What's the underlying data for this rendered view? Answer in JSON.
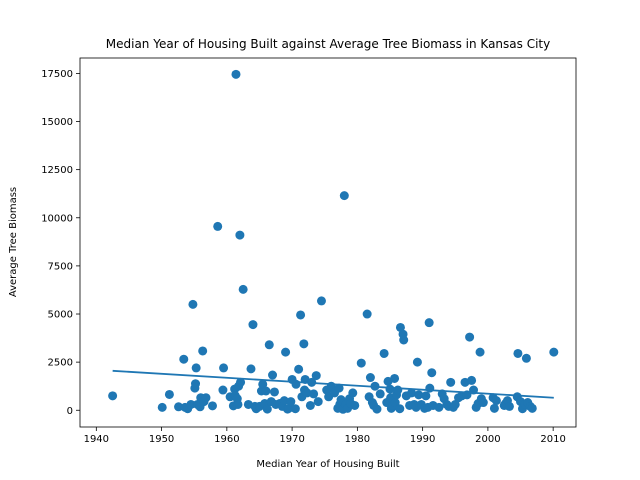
{
  "chart_data": {
    "type": "scatter",
    "title": "Median Year of Housing Built against Average Tree Biomass in Kansas City",
    "xlabel": "Median Year of Housing Built",
    "ylabel": "Average Tree Biomass",
    "xlim": [
      1937.5,
      2013.5
    ],
    "ylim": [
      -870,
      18300
    ],
    "xticks": [
      1940,
      1950,
      1960,
      1970,
      1980,
      1990,
      2000,
      2010
    ],
    "yticks": [
      0,
      2500,
      5000,
      7500,
      10000,
      12500,
      15000,
      17500
    ],
    "xtick_labels": [
      "1940",
      "1950",
      "1960",
      "1970",
      "1980",
      "1990",
      "2000",
      "2010"
    ],
    "ytick_labels": [
      "0",
      "2500",
      "5000",
      "7500",
      "10000",
      "12500",
      "15000",
      "17500"
    ],
    "grid": false,
    "colors": {
      "points": "#1f77b4",
      "trend": "#1f77b4",
      "axes": "#000000"
    },
    "trendline": {
      "x": [
        1942.5,
        2010.1
      ],
      "y": [
        2050,
        650
      ]
    },
    "points": [
      [
        1942.5,
        750
      ],
      [
        1950.1,
        150
      ],
      [
        1951.2,
        820
      ],
      [
        1952.6,
        180
      ],
      [
        1953.4,
        2650
      ],
      [
        1953.6,
        150
      ],
      [
        1954.0,
        80
      ],
      [
        1954.5,
        300
      ],
      [
        1954.8,
        5500
      ],
      [
        1955.1,
        1150
      ],
      [
        1955.2,
        1380
      ],
      [
        1955.3,
        2200
      ],
      [
        1955.5,
        300
      ],
      [
        1955.9,
        180
      ],
      [
        1956.0,
        650
      ],
      [
        1956.3,
        3080
      ],
      [
        1956.5,
        450
      ],
      [
        1956.8,
        650
      ],
      [
        1957.8,
        230
      ],
      [
        1958.6,
        9550
      ],
      [
        1959.4,
        1050
      ],
      [
        1959.5,
        2200
      ],
      [
        1960.5,
        700
      ],
      [
        1961.0,
        230
      ],
      [
        1961.2,
        1100
      ],
      [
        1961.3,
        750
      ],
      [
        1961.4,
        17450
      ],
      [
        1961.6,
        600
      ],
      [
        1961.7,
        300
      ],
      [
        1961.8,
        1250
      ],
      [
        1962.0,
        9100
      ],
      [
        1962.1,
        1450
      ],
      [
        1962.5,
        6280
      ],
      [
        1963.3,
        300
      ],
      [
        1963.7,
        2150
      ],
      [
        1964.0,
        4450
      ],
      [
        1964.3,
        200
      ],
      [
        1964.5,
        80
      ],
      [
        1965.0,
        200
      ],
      [
        1965.3,
        1000
      ],
      [
        1965.5,
        1350
      ],
      [
        1965.8,
        350
      ],
      [
        1966.0,
        1000
      ],
      [
        1966.2,
        60
      ],
      [
        1966.5,
        3400
      ],
      [
        1966.8,
        450
      ],
      [
        1967.0,
        1830
      ],
      [
        1967.3,
        950
      ],
      [
        1967.5,
        300
      ],
      [
        1968.1,
        350
      ],
      [
        1968.5,
        200
      ],
      [
        1968.8,
        500
      ],
      [
        1969.0,
        3020
      ],
      [
        1969.3,
        60
      ],
      [
        1969.5,
        100
      ],
      [
        1969.8,
        450
      ],
      [
        1970.0,
        1600
      ],
      [
        1970.5,
        80
      ],
      [
        1970.6,
        1350
      ],
      [
        1971.0,
        2130
      ],
      [
        1971.3,
        4950
      ],
      [
        1971.5,
        700
      ],
      [
        1971.8,
        3450
      ],
      [
        1971.9,
        1050
      ],
      [
        1972.0,
        1600
      ],
      [
        1972.3,
        900
      ],
      [
        1972.8,
        250
      ],
      [
        1973.0,
        1450
      ],
      [
        1973.3,
        850
      ],
      [
        1973.7,
        1800
      ],
      [
        1974.0,
        450
      ],
      [
        1974.5,
        5680
      ],
      [
        1975.3,
        1050
      ],
      [
        1975.6,
        700
      ],
      [
        1976.0,
        1250
      ],
      [
        1976.5,
        900
      ],
      [
        1977.0,
        100
      ],
      [
        1977.2,
        1150
      ],
      [
        1977.3,
        300
      ],
      [
        1977.5,
        550
      ],
      [
        1977.8,
        50
      ],
      [
        1978.0,
        11150
      ],
      [
        1978.2,
        300
      ],
      [
        1978.5,
        100
      ],
      [
        1978.8,
        600
      ],
      [
        1979.0,
        350
      ],
      [
        1979.3,
        900
      ],
      [
        1979.6,
        250
      ],
      [
        1980.6,
        2450
      ],
      [
        1981.5,
        5000
      ],
      [
        1981.8,
        700
      ],
      [
        1982.0,
        1700
      ],
      [
        1982.3,
        400
      ],
      [
        1982.5,
        250
      ],
      [
        1982.7,
        1250
      ],
      [
        1983.0,
        60
      ],
      [
        1983.5,
        850
      ],
      [
        1984.1,
        2950
      ],
      [
        1984.5,
        400
      ],
      [
        1984.7,
        1500
      ],
      [
        1985.0,
        1100
      ],
      [
        1985.1,
        650
      ],
      [
        1985.2,
        100
      ],
      [
        1985.4,
        250
      ],
      [
        1985.7,
        1650
      ],
      [
        1985.8,
        400
      ],
      [
        1986.0,
        800
      ],
      [
        1986.2,
        1050
      ],
      [
        1986.5,
        80
      ],
      [
        1986.6,
        4300
      ],
      [
        1987.0,
        3950
      ],
      [
        1987.1,
        3650
      ],
      [
        1987.5,
        750
      ],
      [
        1988.0,
        250
      ],
      [
        1988.3,
        900
      ],
      [
        1988.7,
        300
      ],
      [
        1989.0,
        150
      ],
      [
        1989.2,
        2500
      ],
      [
        1989.4,
        800
      ],
      [
        1989.8,
        300
      ],
      [
        1990.3,
        100
      ],
      [
        1990.5,
        750
      ],
      [
        1990.8,
        150
      ],
      [
        1991.0,
        4550
      ],
      [
        1991.1,
        1150
      ],
      [
        1991.4,
        1950
      ],
      [
        1991.6,
        250
      ],
      [
        1992.5,
        150
      ],
      [
        1993.0,
        850
      ],
      [
        1993.3,
        600
      ],
      [
        1993.7,
        300
      ],
      [
        1994.0,
        200
      ],
      [
        1994.3,
        1450
      ],
      [
        1994.7,
        150
      ],
      [
        1995.0,
        300
      ],
      [
        1995.5,
        650
      ],
      [
        1996.0,
        750
      ],
      [
        1996.5,
        1450
      ],
      [
        1996.8,
        800
      ],
      [
        1997.2,
        3800
      ],
      [
        1997.5,
        1550
      ],
      [
        1997.8,
        1050
      ],
      [
        1998.2,
        150
      ],
      [
        1998.5,
        350
      ],
      [
        1998.8,
        3020
      ],
      [
        1999.0,
        600
      ],
      [
        1999.3,
        400
      ],
      [
        2000.8,
        650
      ],
      [
        2001.0,
        100
      ],
      [
        2001.3,
        500
      ],
      [
        2002.5,
        250
      ],
      [
        2002.7,
        350
      ],
      [
        2003.0,
        500
      ],
      [
        2003.3,
        200
      ],
      [
        2004.5,
        700
      ],
      [
        2004.6,
        2950
      ],
      [
        2005.0,
        450
      ],
      [
        2005.3,
        80
      ],
      [
        2005.7,
        300
      ],
      [
        2005.9,
        2700
      ],
      [
        2006.1,
        400
      ],
      [
        2006.5,
        200
      ],
      [
        2006.8,
        100
      ],
      [
        2010.1,
        3020
      ]
    ]
  }
}
